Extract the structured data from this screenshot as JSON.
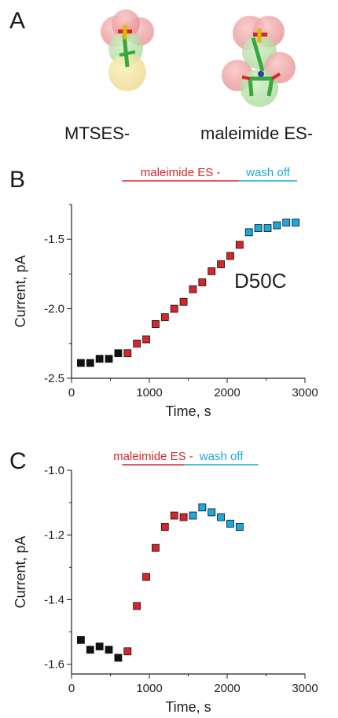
{
  "panel_a": {
    "letter": "A",
    "molecule_labels": [
      "MTSES-",
      "maleimide ES-"
    ]
  },
  "colors": {
    "control": "#111111",
    "treatment": "#d6262b",
    "wash": "#1ba8dc"
  },
  "chart_data": [
    {
      "panel": "B",
      "type": "scatter",
      "xlabel": "Time, s",
      "ylabel": "Current, pA",
      "xlim": [
        0,
        3000
      ],
      "ylim": [
        -2.5,
        -1.25
      ],
      "xticks": [
        0,
        1000,
        2000,
        3000
      ],
      "yticks": [
        -2.5,
        -2.0,
        -1.5
      ],
      "ytick_labels": [
        "-2.5",
        "-2.0",
        "-1.5"
      ],
      "annotation": "D50C",
      "bars": [
        {
          "label": "maleimide ES -",
          "x": [
            650,
            2150
          ],
          "color": "#d6262b"
        },
        {
          "label": "wash off",
          "x": [
            2150,
            2900
          ],
          "color": "#1ba8dc"
        }
      ],
      "series": [
        {
          "color": "#111111",
          "x": [
            120,
            240,
            360,
            480,
            600
          ],
          "y": [
            -2.39,
            -2.39,
            -2.36,
            -2.36,
            -2.32
          ]
        },
        {
          "color": "#d6262b",
          "x": [
            720,
            840,
            960,
            1080,
            1200,
            1320,
            1440,
            1560,
            1680,
            1800,
            1920,
            2040,
            2160
          ],
          "y": [
            -2.32,
            -2.25,
            -2.22,
            -2.11,
            -2.06,
            -2.0,
            -1.95,
            -1.86,
            -1.81,
            -1.73,
            -1.68,
            -1.62,
            -1.54
          ]
        },
        {
          "color": "#1ba8dc",
          "x": [
            2280,
            2400,
            2520,
            2640,
            2760,
            2880
          ],
          "y": [
            -1.45,
            -1.42,
            -1.42,
            -1.4,
            -1.38,
            -1.38
          ]
        }
      ]
    },
    {
      "panel": "C",
      "type": "scatter",
      "xlabel": "Time, s",
      "ylabel": "Current, pA",
      "xlim": [
        0,
        3000
      ],
      "ylim": [
        -1.63,
        -1.0
      ],
      "xticks": [
        0,
        1000,
        2000,
        3000
      ],
      "yticks": [
        -1.6,
        -1.4,
        -1.2,
        -1.0
      ],
      "ytick_labels": [
        "-1.6",
        "-1.4",
        "-1.2",
        "-1.0"
      ],
      "bars": [
        {
          "label": "maleimide ES -",
          "x": [
            650,
            1450
          ],
          "color": "#d6262b"
        },
        {
          "label": "wash off",
          "x": [
            1450,
            2400
          ],
          "color": "#1ba8dc"
        }
      ],
      "series": [
        {
          "color": "#111111",
          "x": [
            120,
            240,
            360,
            480,
            600
          ],
          "y": [
            -1.525,
            -1.555,
            -1.545,
            -1.555,
            -1.58
          ]
        },
        {
          "color": "#d6262b",
          "x": [
            720,
            840,
            960,
            1080,
            1200,
            1320,
            1440
          ],
          "y": [
            -1.56,
            -1.42,
            -1.33,
            -1.24,
            -1.175,
            -1.14,
            -1.145
          ]
        },
        {
          "color": "#1ba8dc",
          "x": [
            1560,
            1680,
            1800,
            1920,
            2040,
            2160
          ],
          "y": [
            -1.14,
            -1.115,
            -1.13,
            -1.145,
            -1.165,
            -1.175
          ]
        }
      ]
    }
  ]
}
